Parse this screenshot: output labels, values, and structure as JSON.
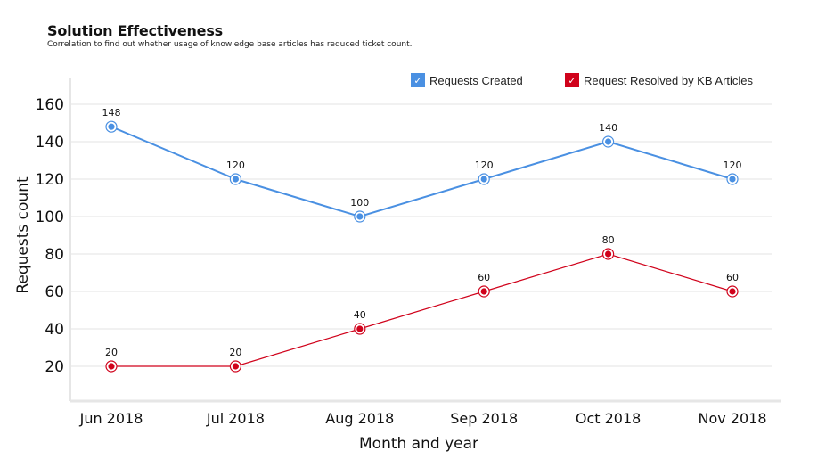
{
  "header": {
    "title": "Solution Effectiveness",
    "subtitle": "Correlation to find out whether usage of knowledge base articles has reduced ticket count."
  },
  "chart_data": {
    "type": "line",
    "title": "Solution Effectiveness",
    "subtitle": "Correlation to find out whether usage of knowledge base articles has reduced ticket count.",
    "xlabel": "Month and year",
    "ylabel": "Requests count",
    "categories": [
      "Jun 2018",
      "Jul 2018",
      "Aug 2018",
      "Sep 2018",
      "Oct 2018",
      "Nov 2018"
    ],
    "yticks": [
      20,
      40,
      60,
      80,
      100,
      120,
      140,
      160
    ],
    "ylim": [
      0,
      170
    ],
    "grid": true,
    "legend_position": "top-right",
    "series": [
      {
        "name": "Requests Created",
        "color": "#4a90e2",
        "values": [
          148,
          120,
          100,
          120,
          140,
          120
        ],
        "checked": true
      },
      {
        "name": "Request Resolved by KB Articles",
        "color": "#d0021b",
        "values": [
          20,
          20,
          40,
          60,
          80,
          60
        ],
        "checked": true
      }
    ]
  },
  "legend": {
    "items": [
      {
        "label": "Requests Created",
        "color": "#4a90e2",
        "icon": "check-icon"
      },
      {
        "label": "Request Resolved by KB Articles",
        "color": "#d0021b",
        "icon": "check-icon"
      }
    ]
  }
}
